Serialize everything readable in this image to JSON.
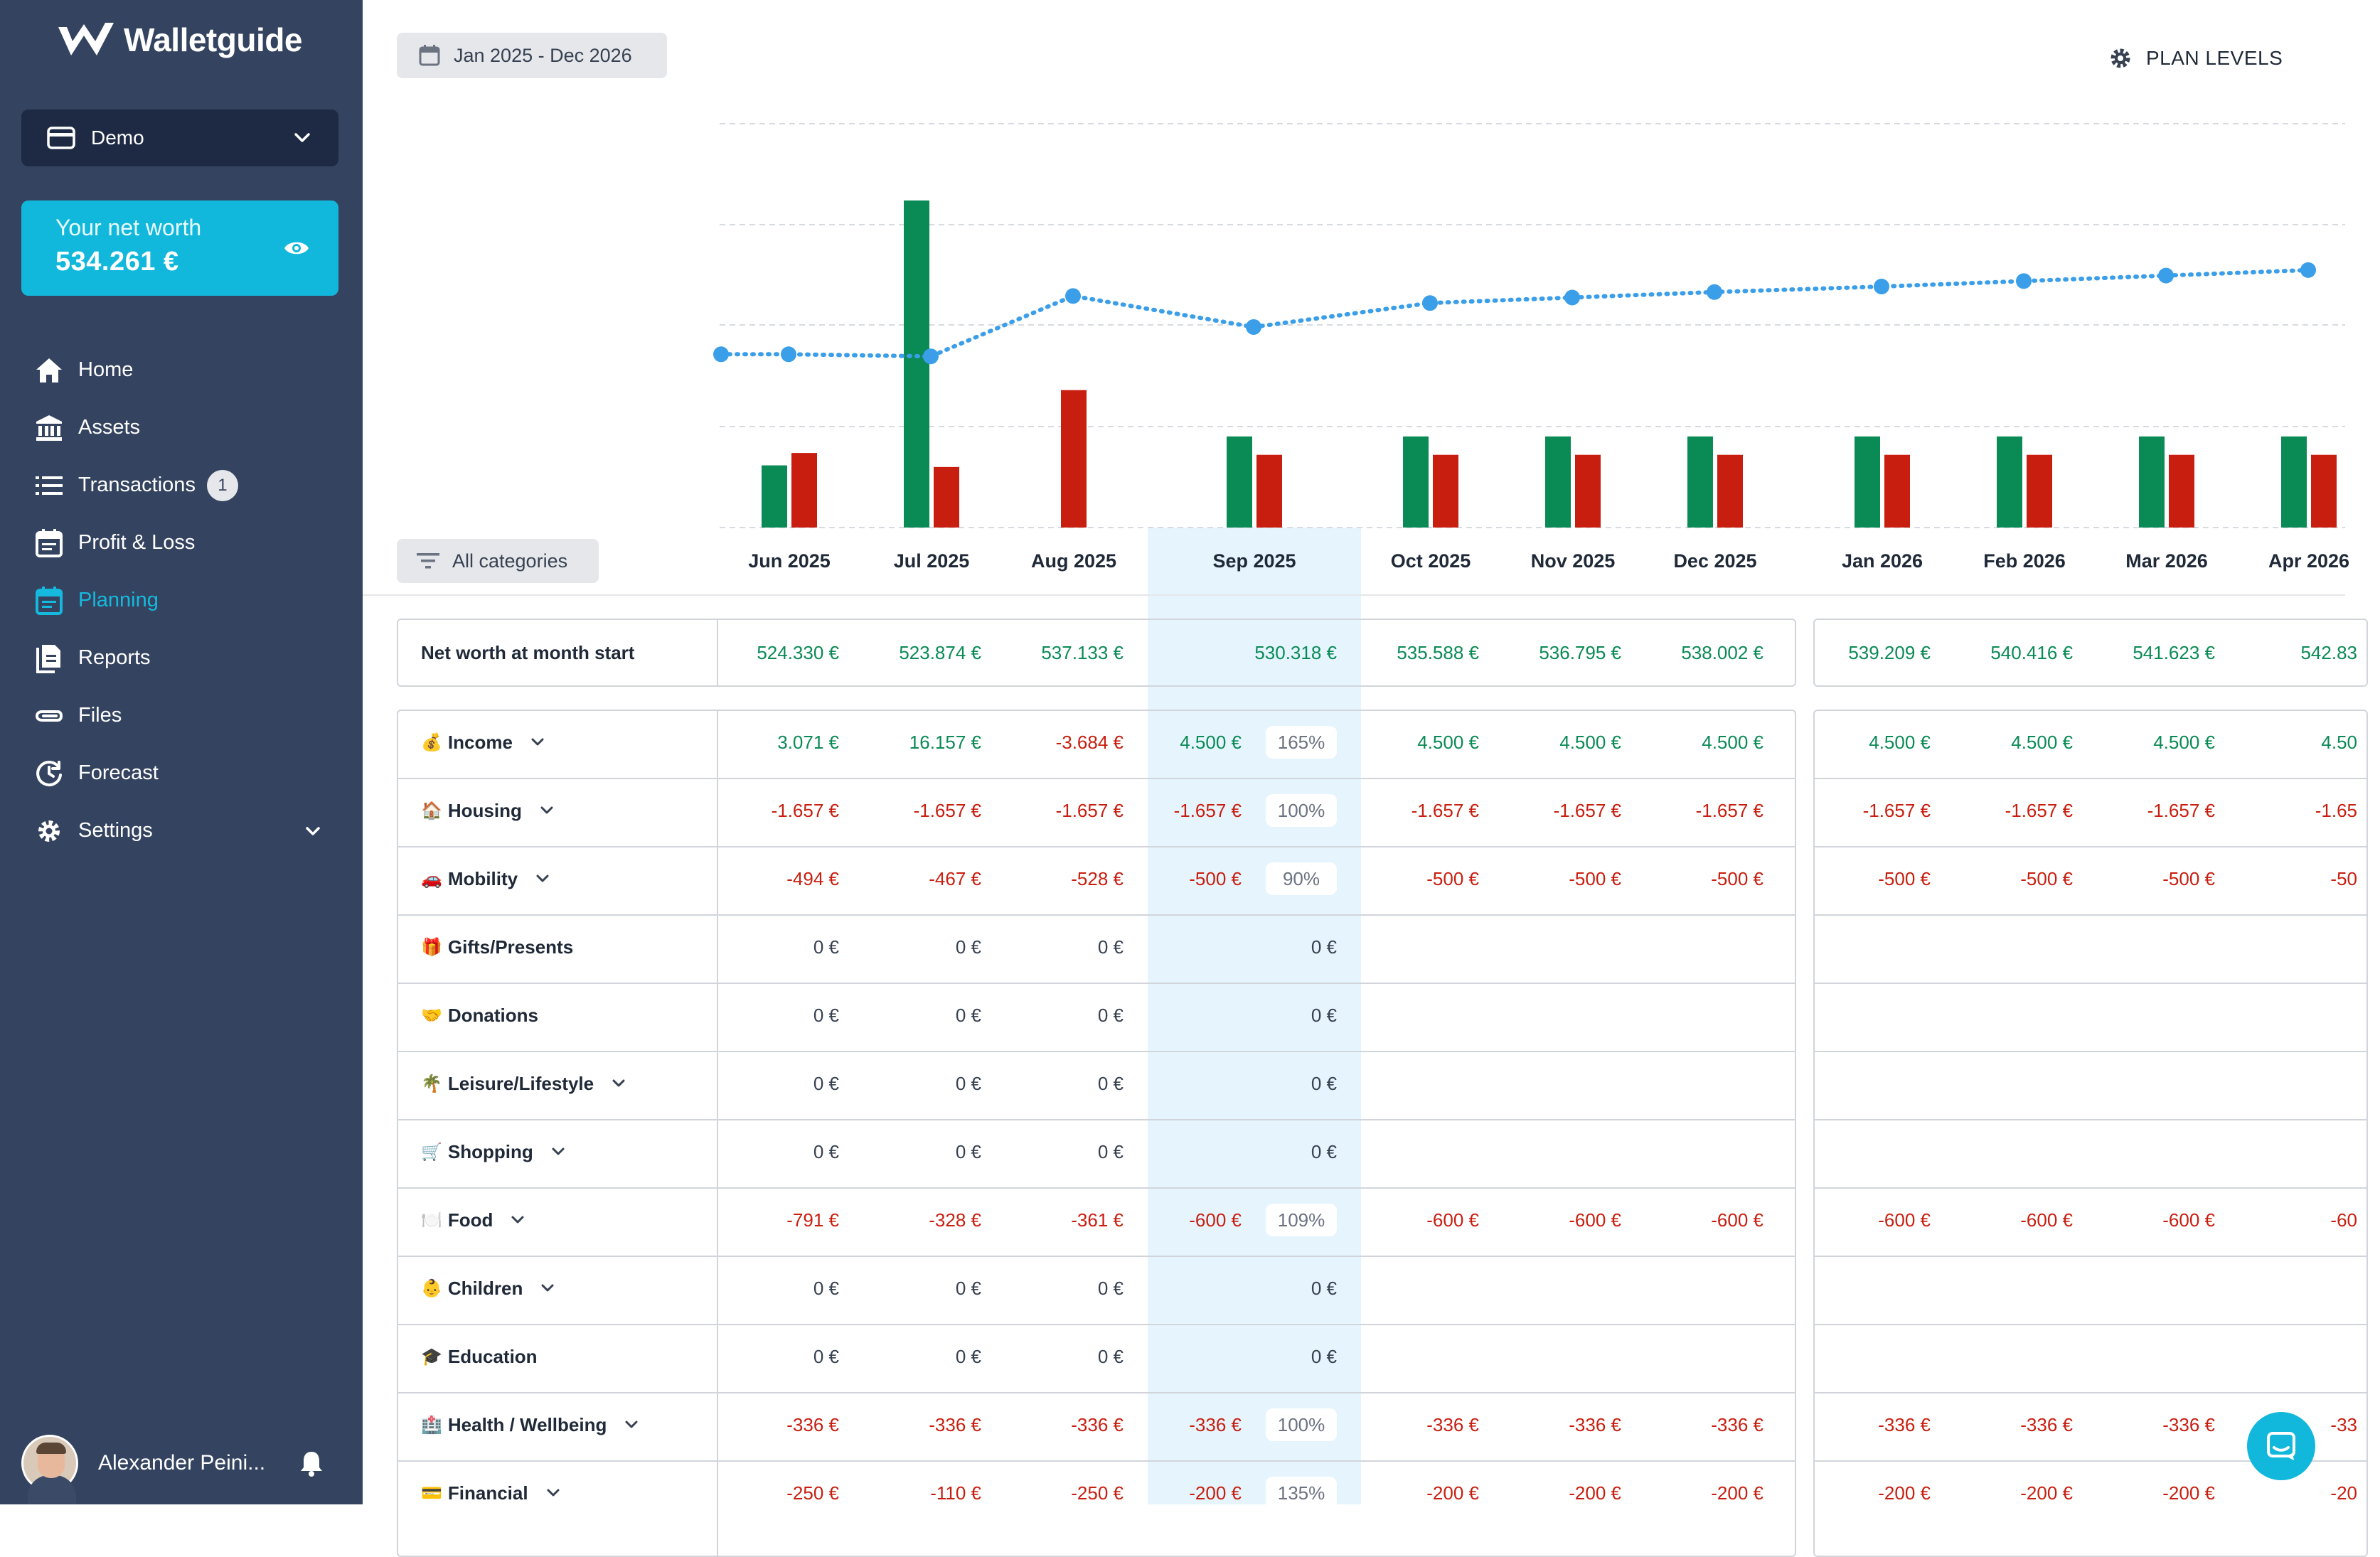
{
  "app": {
    "name": "Walletguide"
  },
  "account": {
    "selected": "Demo"
  },
  "networth": {
    "label": "Your net worth",
    "value": "534.261 €"
  },
  "nav": {
    "home": "Home",
    "assets": "Assets",
    "transactions": "Transactions",
    "transactions_badge": "1",
    "profit_loss": "Profit & Loss",
    "planning": "Planning",
    "reports": "Reports",
    "files": "Files",
    "forecast": "Forecast",
    "settings": "Settings"
  },
  "user": {
    "name": "Alexander Peini..."
  },
  "toolbar": {
    "date_range": "Jan 2025 - Dec 2026",
    "plan_levels": "PLAN LEVELS",
    "category_filter": "All categories"
  },
  "colors": {
    "income": "#0a8a55",
    "expense": "#c81e0f",
    "networth_line": "#3b9ee8",
    "accent": "#12b8dc",
    "sidebar": "#34435f",
    "selected_month": "#e6f5fd"
  },
  "months": [
    "Jun 2025",
    "Jul 2025",
    "Aug 2025",
    "Sep 2025",
    "Oct 2025",
    "Nov 2025",
    "Dec 2025",
    "Jan 2026",
    "Feb 2026",
    "Mar 2026",
    "Apr 2026"
  ],
  "selected_month": "Sep 2025",
  "chart_data": {
    "type": "bar",
    "categories": [
      "Jun 2025",
      "Jul 2025",
      "Aug 2025",
      "Sep 2025",
      "Oct 2025",
      "Nov 2025",
      "Dec 2025",
      "Jan 2026",
      "Feb 2026",
      "Mar 2026",
      "Apr 2026"
    ],
    "series": [
      {
        "type": "bar",
        "values": [
          3071,
          16157,
          0,
          4500,
          4500,
          4500,
          4500,
          4500,
          4500,
          4500,
          4500
        ]
      },
      {
        "type": "bar",
        "values": [
          3684,
          2991,
          6788,
          3593,
          3593,
          3593,
          3593,
          3593,
          3593,
          3593,
          3593
        ]
      },
      {
        "type": "line",
        "values": [
          524330,
          523874,
          537133,
          530318,
          535588,
          536795,
          538002,
          539209,
          540416,
          541623,
          542830
        ]
      }
    ],
    "grid": true
  },
  "table": {
    "networth_row": {
      "label": "Net worth at month start",
      "values": [
        "524.330 €",
        "523.874 €",
        "537.133 €",
        "530.318 €",
        "535.588 €",
        "536.795 €",
        "538.002 €",
        "539.209 €",
        "540.416 €",
        "541.623 €",
        "542.83"
      ]
    },
    "rows": [
      {
        "emoji": "💰",
        "label": "Income",
        "expandable": true,
        "values": [
          "3.071 €",
          "16.157 €",
          "-3.684 €",
          "4.500 €",
          "4.500 €",
          "4.500 €",
          "4.500 €",
          "4.500 €",
          "4.500 €",
          "4.500 €",
          "4.50"
        ],
        "pct": "165%",
        "tone": [
          "pos",
          "pos",
          "neg",
          "pos",
          "pos",
          "pos",
          "pos",
          "pos",
          "pos",
          "pos",
          "pos"
        ]
      },
      {
        "emoji": "🏠",
        "label": "Housing",
        "expandable": true,
        "values": [
          "-1.657 €",
          "-1.657 €",
          "-1.657 €",
          "-1.657 €",
          "-1.657 €",
          "-1.657 €",
          "-1.657 €",
          "-1.657 €",
          "-1.657 €",
          "-1.657 €",
          "-1.65"
        ],
        "pct": "100%",
        "tone": [
          "neg",
          "neg",
          "neg",
          "neg",
          "neg",
          "neg",
          "neg",
          "neg",
          "neg",
          "neg",
          "neg"
        ]
      },
      {
        "emoji": "🚗",
        "label": "Mobility",
        "expandable": true,
        "values": [
          "-494 €",
          "-467 €",
          "-528 €",
          "-500 €",
          "-500 €",
          "-500 €",
          "-500 €",
          "-500 €",
          "-500 €",
          "-500 €",
          "-50"
        ],
        "pct": "90%",
        "tone": [
          "neg",
          "neg",
          "neg",
          "neg",
          "neg",
          "neg",
          "neg",
          "neg",
          "neg",
          "neg",
          "neg"
        ]
      },
      {
        "emoji": "🎁",
        "label": "Gifts/Presents",
        "expandable": false,
        "values": [
          "0 €",
          "0 €",
          "0 €",
          "0 €",
          "",
          "",
          "",
          "",
          "",
          "",
          ""
        ],
        "pct": "",
        "tone": [
          "zero",
          "zero",
          "zero",
          "zero",
          "zero",
          "zero",
          "zero",
          "zero",
          "zero",
          "zero",
          "zero"
        ]
      },
      {
        "emoji": "🤝",
        "label": "Donations",
        "expandable": false,
        "values": [
          "0 €",
          "0 €",
          "0 €",
          "0 €",
          "",
          "",
          "",
          "",
          "",
          "",
          ""
        ],
        "pct": "",
        "tone": [
          "zero",
          "zero",
          "zero",
          "zero",
          "zero",
          "zero",
          "zero",
          "zero",
          "zero",
          "zero",
          "zero"
        ]
      },
      {
        "emoji": "🌴",
        "label": "Leisure/Lifestyle",
        "expandable": true,
        "values": [
          "0 €",
          "0 €",
          "0 €",
          "0 €",
          "",
          "",
          "",
          "",
          "",
          "",
          ""
        ],
        "pct": "",
        "tone": [
          "zero",
          "zero",
          "zero",
          "zero",
          "zero",
          "zero",
          "zero",
          "zero",
          "zero",
          "zero",
          "zero"
        ]
      },
      {
        "emoji": "🛒",
        "label": "Shopping",
        "expandable": true,
        "values": [
          "0 €",
          "0 €",
          "0 €",
          "0 €",
          "",
          "",
          "",
          "",
          "",
          "",
          ""
        ],
        "pct": "",
        "tone": [
          "zero",
          "zero",
          "zero",
          "zero",
          "zero",
          "zero",
          "zero",
          "zero",
          "zero",
          "zero",
          "zero"
        ]
      },
      {
        "emoji": "🍽️",
        "label": "Food",
        "expandable": true,
        "values": [
          "-791 €",
          "-328 €",
          "-361 €",
          "-600 €",
          "-600 €",
          "-600 €",
          "-600 €",
          "-600 €",
          "-600 €",
          "-600 €",
          "-60"
        ],
        "pct": "109%",
        "tone": [
          "neg",
          "neg",
          "neg",
          "neg",
          "neg",
          "neg",
          "neg",
          "neg",
          "neg",
          "neg",
          "neg"
        ]
      },
      {
        "emoji": "👶",
        "label": "Children",
        "expandable": true,
        "values": [
          "0 €",
          "0 €",
          "0 €",
          "0 €",
          "",
          "",
          "",
          "",
          "",
          "",
          ""
        ],
        "pct": "",
        "tone": [
          "zero",
          "zero",
          "zero",
          "zero",
          "zero",
          "zero",
          "zero",
          "zero",
          "zero",
          "zero",
          "zero"
        ]
      },
      {
        "emoji": "🎓",
        "label": "Education",
        "expandable": false,
        "values": [
          "0 €",
          "0 €",
          "0 €",
          "0 €",
          "",
          "",
          "",
          "",
          "",
          "",
          ""
        ],
        "pct": "",
        "tone": [
          "zero",
          "zero",
          "zero",
          "zero",
          "zero",
          "zero",
          "zero",
          "zero",
          "zero",
          "zero",
          "zero"
        ]
      },
      {
        "emoji": "🏥",
        "label": "Health / Wellbeing",
        "expandable": true,
        "values": [
          "-336 €",
          "-336 €",
          "-336 €",
          "-336 €",
          "-336 €",
          "-336 €",
          "-336 €",
          "-336 €",
          "-336 €",
          "-336 €",
          "-33"
        ],
        "pct": "100%",
        "tone": [
          "neg",
          "neg",
          "neg",
          "neg",
          "neg",
          "neg",
          "neg",
          "neg",
          "neg",
          "neg",
          "neg"
        ]
      },
      {
        "emoji": "💳",
        "label": "Financial",
        "expandable": true,
        "values": [
          "-250 €",
          "-110 €",
          "-250 €",
          "-200 €",
          "-200 €",
          "-200 €",
          "-200 €",
          "-200 €",
          "-200 €",
          "-200 €",
          "-20"
        ],
        "pct": "135%",
        "tone": [
          "neg",
          "neg",
          "neg",
          "neg",
          "neg",
          "neg",
          "neg",
          "neg",
          "neg",
          "neg",
          "neg"
        ]
      }
    ]
  }
}
